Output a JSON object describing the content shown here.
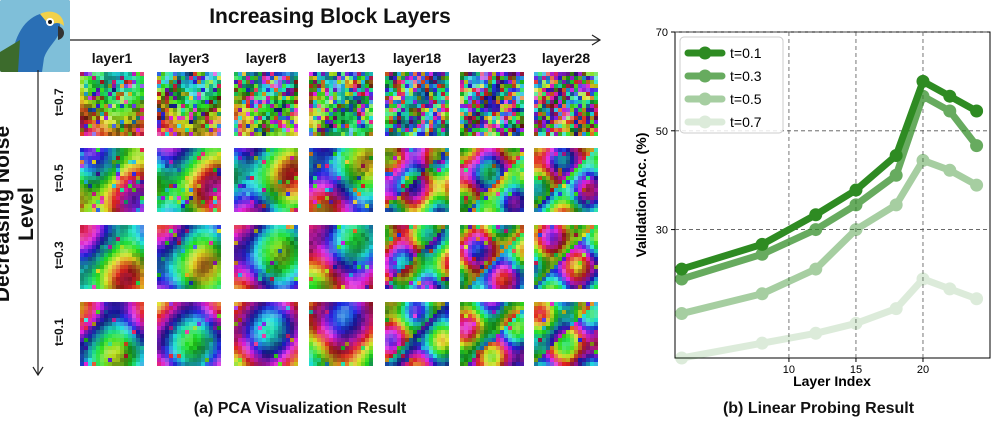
{
  "left_panel": {
    "top_title": "Increasing Block Layers",
    "side_title": "Decreasing Noise Level",
    "layers": [
      "layer1",
      "layer3",
      "layer8",
      "layer13",
      "layer18",
      "layer23",
      "layer28"
    ],
    "noise_levels": [
      "t=0.7",
      "t=0.5",
      "t=0.3",
      "t=0.1"
    ],
    "caption": "(a) PCA Visualization Result"
  },
  "right_caption": "(b) Linear Probing Result",
  "chart_data": {
    "type": "line",
    "title": "",
    "xlabel": "Layer Index",
    "ylabel": "Validation Acc. (%)",
    "xlim": [
      1.5,
      25
    ],
    "ylim": [
      4,
      70
    ],
    "xticks": [
      10,
      15,
      20
    ],
    "yticks": [
      30,
      50,
      70
    ],
    "grid": true,
    "legend_position": "top-left",
    "x": [
      2,
      8,
      12,
      15,
      18,
      20,
      22,
      24
    ],
    "series": [
      {
        "name": "t=0.1",
        "color": "#2e8b22",
        "opacity": 1.0,
        "values": [
          22,
          27,
          33,
          38,
          45,
          60,
          57,
          54
        ]
      },
      {
        "name": "t=0.3",
        "color": "#2e8b22",
        "opacity": 0.72,
        "values": [
          20,
          25,
          30,
          35,
          41,
          57,
          54,
          47
        ]
      },
      {
        "name": "t=0.5",
        "color": "#2e8b22",
        "opacity": 0.42,
        "values": [
          13,
          17,
          22,
          30,
          35,
          44,
          42,
          39
        ]
      },
      {
        "name": "t=0.7",
        "color": "#2e8b22",
        "opacity": 0.16,
        "values": [
          4,
          7,
          9,
          11,
          14,
          20,
          18,
          16
        ]
      }
    ]
  }
}
